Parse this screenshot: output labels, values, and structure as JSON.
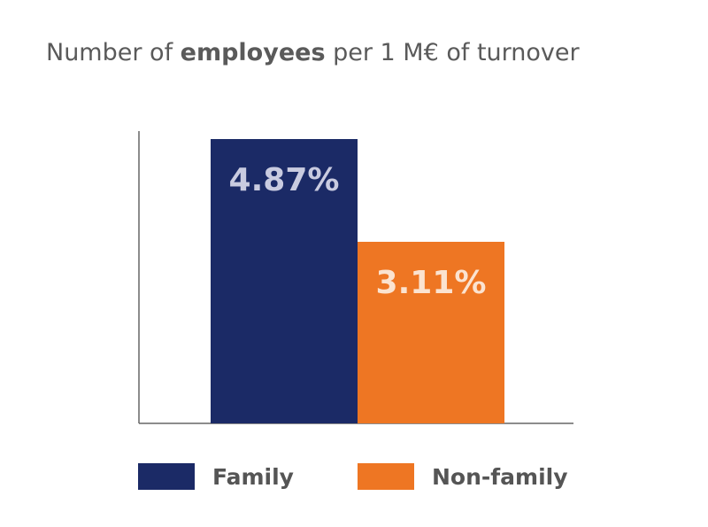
{
  "title": {
    "prefix": "Number of ",
    "bold": "employees",
    "suffix": " per 1 M€ of turnover"
  },
  "colors": {
    "family": "#1b2a66",
    "non_family": "#ee7623",
    "axis": "#666666",
    "family_label_text": "#c9cbe0",
    "non_family_label_text": "#fbe3d0"
  },
  "chart_data": {
    "type": "bar",
    "title": "Number of employees per 1 M€ of turnover",
    "categories": [
      "Family",
      "Non-family"
    ],
    "values": [
      4.87,
      3.11
    ],
    "value_labels": [
      "4.87%",
      "3.11%"
    ],
    "xlabel": "",
    "ylabel": "",
    "ylim": [
      0,
      4.87
    ],
    "grid": false,
    "legend": {
      "placement": "bottom",
      "entries": [
        "Family",
        "Non-family"
      ]
    }
  }
}
